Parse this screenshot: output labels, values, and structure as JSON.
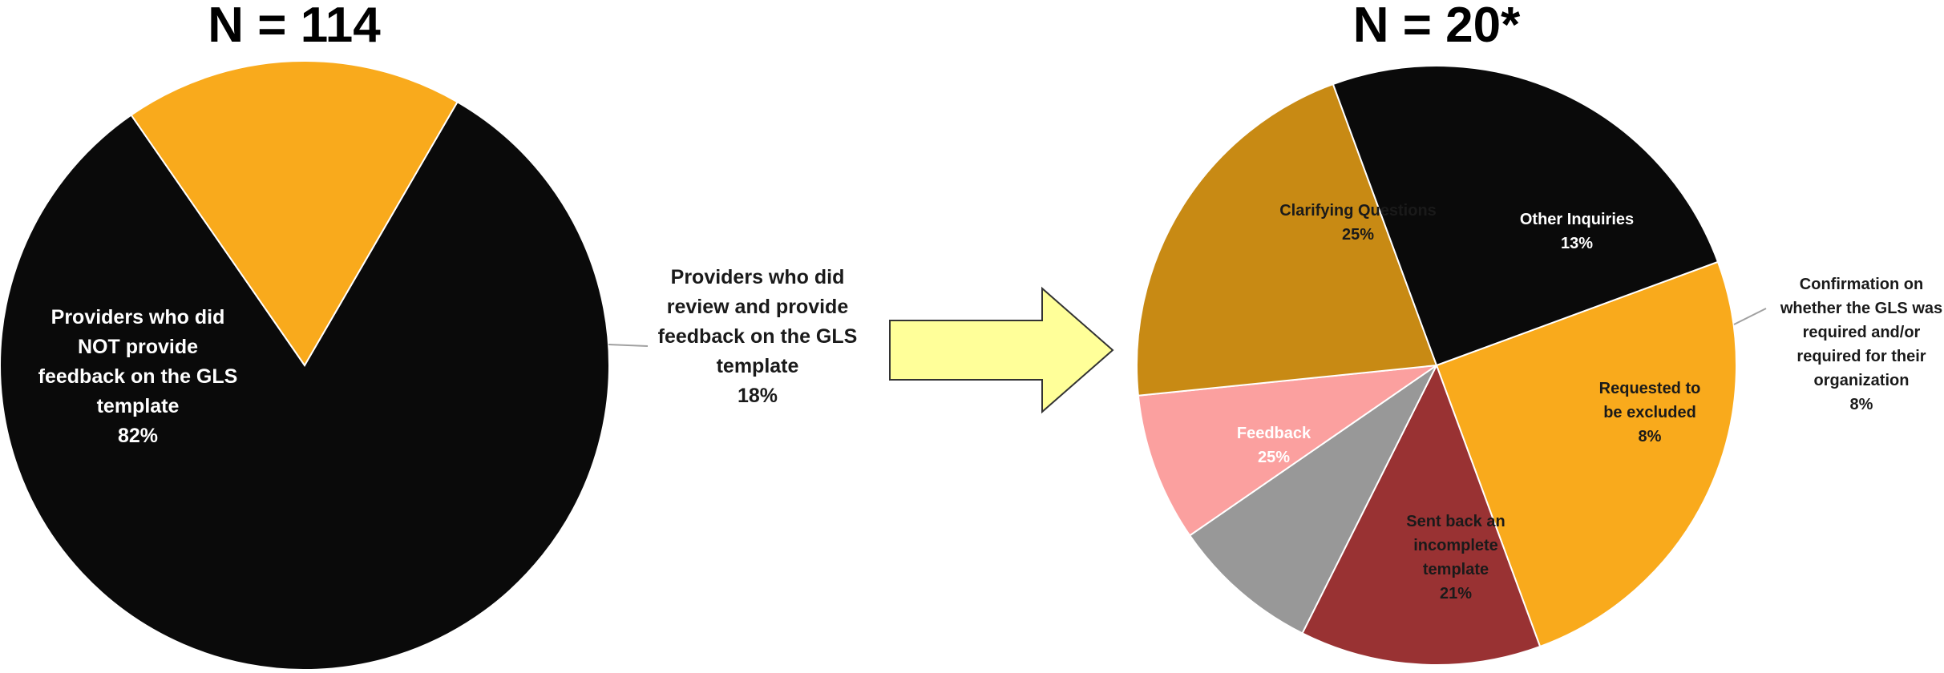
{
  "chart_data": [
    {
      "type": "pie",
      "title": "N = 114",
      "slices": [
        {
          "lines": [
            "Providers who did",
            "NOT  provide",
            "feedback on the GLS",
            "template"
          ],
          "pct_label": "82%",
          "value": 82,
          "color": "#0a0a0a",
          "label_color": "#ffffff",
          "label_placement": "inside"
        },
        {
          "lines": [
            "Providers who did",
            "review and provide",
            "feedback on the GLS",
            "template"
          ],
          "pct_label": "18%",
          "value": 18,
          "color": "#f9aa1c",
          "label_color": "#1a1a1a",
          "label_placement": "outside-right"
        }
      ]
    },
    {
      "type": "pie",
      "title": "N = 20*",
      "slices": [
        {
          "lines": [
            "Clarifying Questions"
          ],
          "pct_label": "25%",
          "value": 25,
          "color": "#f9aa1c",
          "label_color": "#1a1a1a",
          "label_placement": "inside"
        },
        {
          "lines": [
            "Other Inquiries"
          ],
          "pct_label": "13%",
          "value": 13,
          "color": "#993233",
          "label_color": "#ffffff",
          "label_placement": "inside"
        },
        {
          "lines": [
            "Confirmation on",
            "whether the GLS was",
            "required and/or",
            "required for their",
            "organization"
          ],
          "pct_label": "8%",
          "value": 8,
          "color": "#989898",
          "label_color": "#1a1a1a",
          "label_placement": "outside-right"
        },
        {
          "lines": [
            "Requested to",
            "be excluded"
          ],
          "pct_label": "8%",
          "value": 8,
          "color": "#fba09f",
          "label_color": "#1a1a1a",
          "label_placement": "inside"
        },
        {
          "lines": [
            "Sent back an",
            "incomplete",
            "template"
          ],
          "pct_label": "21%",
          "value": 21,
          "color": "#c88a14",
          "label_color": "#1a1a1a",
          "label_placement": "inside"
        },
        {
          "lines": [
            "Feedback"
          ],
          "pct_label": "25%",
          "value": 25,
          "color": "#0a0a0a",
          "label_color": "#ffffff",
          "label_placement": "inside"
        }
      ]
    }
  ],
  "arrow": {
    "color": "#ffff99",
    "stroke": "#333333"
  }
}
